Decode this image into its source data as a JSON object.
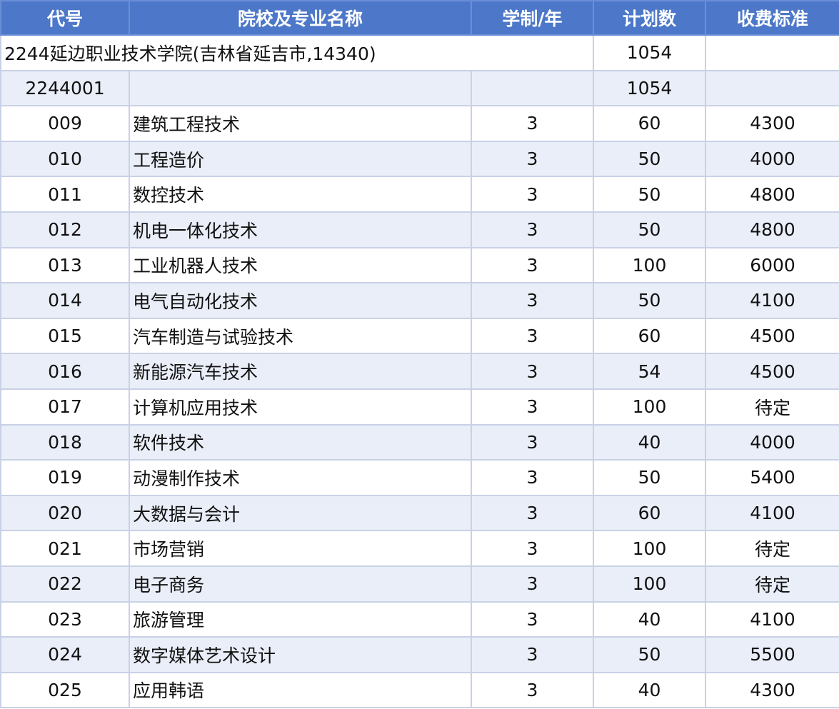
{
  "table": {
    "headers": {
      "code": "代号",
      "name": "院校及专业名称",
      "years": "学制/年",
      "plan": "计划数",
      "fee": "收费标准"
    },
    "school": {
      "title": "2244延边职业技术学院(吉林省延吉市,14340)",
      "plan": "1054",
      "fee": ""
    },
    "group": {
      "code": "2244001",
      "name": "",
      "years": "",
      "plan": "1054",
      "fee": ""
    },
    "rows": [
      {
        "code": "009",
        "name": "建筑工程技术",
        "years": "3",
        "plan": "60",
        "fee": "4300"
      },
      {
        "code": "010",
        "name": "工程造价",
        "years": "3",
        "plan": "50",
        "fee": "4000"
      },
      {
        "code": "011",
        "name": "数控技术",
        "years": "3",
        "plan": "50",
        "fee": "4800"
      },
      {
        "code": "012",
        "name": "机电一体化技术",
        "years": "3",
        "plan": "50",
        "fee": "4800"
      },
      {
        "code": "013",
        "name": "工业机器人技术",
        "years": "3",
        "plan": "100",
        "fee": "6000"
      },
      {
        "code": "014",
        "name": "电气自动化技术",
        "years": "3",
        "plan": "50",
        "fee": "4100"
      },
      {
        "code": "015",
        "name": "汽车制造与试验技术",
        "years": "3",
        "plan": "60",
        "fee": "4500"
      },
      {
        "code": "016",
        "name": "新能源汽车技术",
        "years": "3",
        "plan": "54",
        "fee": "4500"
      },
      {
        "code": "017",
        "name": "计算机应用技术",
        "years": "3",
        "plan": "100",
        "fee": "待定"
      },
      {
        "code": "018",
        "name": "软件技术",
        "years": "3",
        "plan": "40",
        "fee": "4000"
      },
      {
        "code": "019",
        "name": "动漫制作技术",
        "years": "3",
        "plan": "50",
        "fee": "5400"
      },
      {
        "code": "020",
        "name": "大数据与会计",
        "years": "3",
        "plan": "60",
        "fee": "4100"
      },
      {
        "code": "021",
        "name": "市场营销",
        "years": "3",
        "plan": "100",
        "fee": "待定"
      },
      {
        "code": "022",
        "name": "电子商务",
        "years": "3",
        "plan": "100",
        "fee": "待定"
      },
      {
        "code": "023",
        "name": "旅游管理",
        "years": "3",
        "plan": "40",
        "fee": "4100"
      },
      {
        "code": "024",
        "name": "数字媒体艺术设计",
        "years": "3",
        "plan": "50",
        "fee": "5500"
      },
      {
        "code": "025",
        "name": "应用韩语",
        "years": "3",
        "plan": "40",
        "fee": "4300"
      }
    ]
  },
  "colors": {
    "header_bg": "#4d78c9",
    "header_text": "#ffffff",
    "zebra_bg": "#eaeef8",
    "border": "#c9d1e6"
  }
}
